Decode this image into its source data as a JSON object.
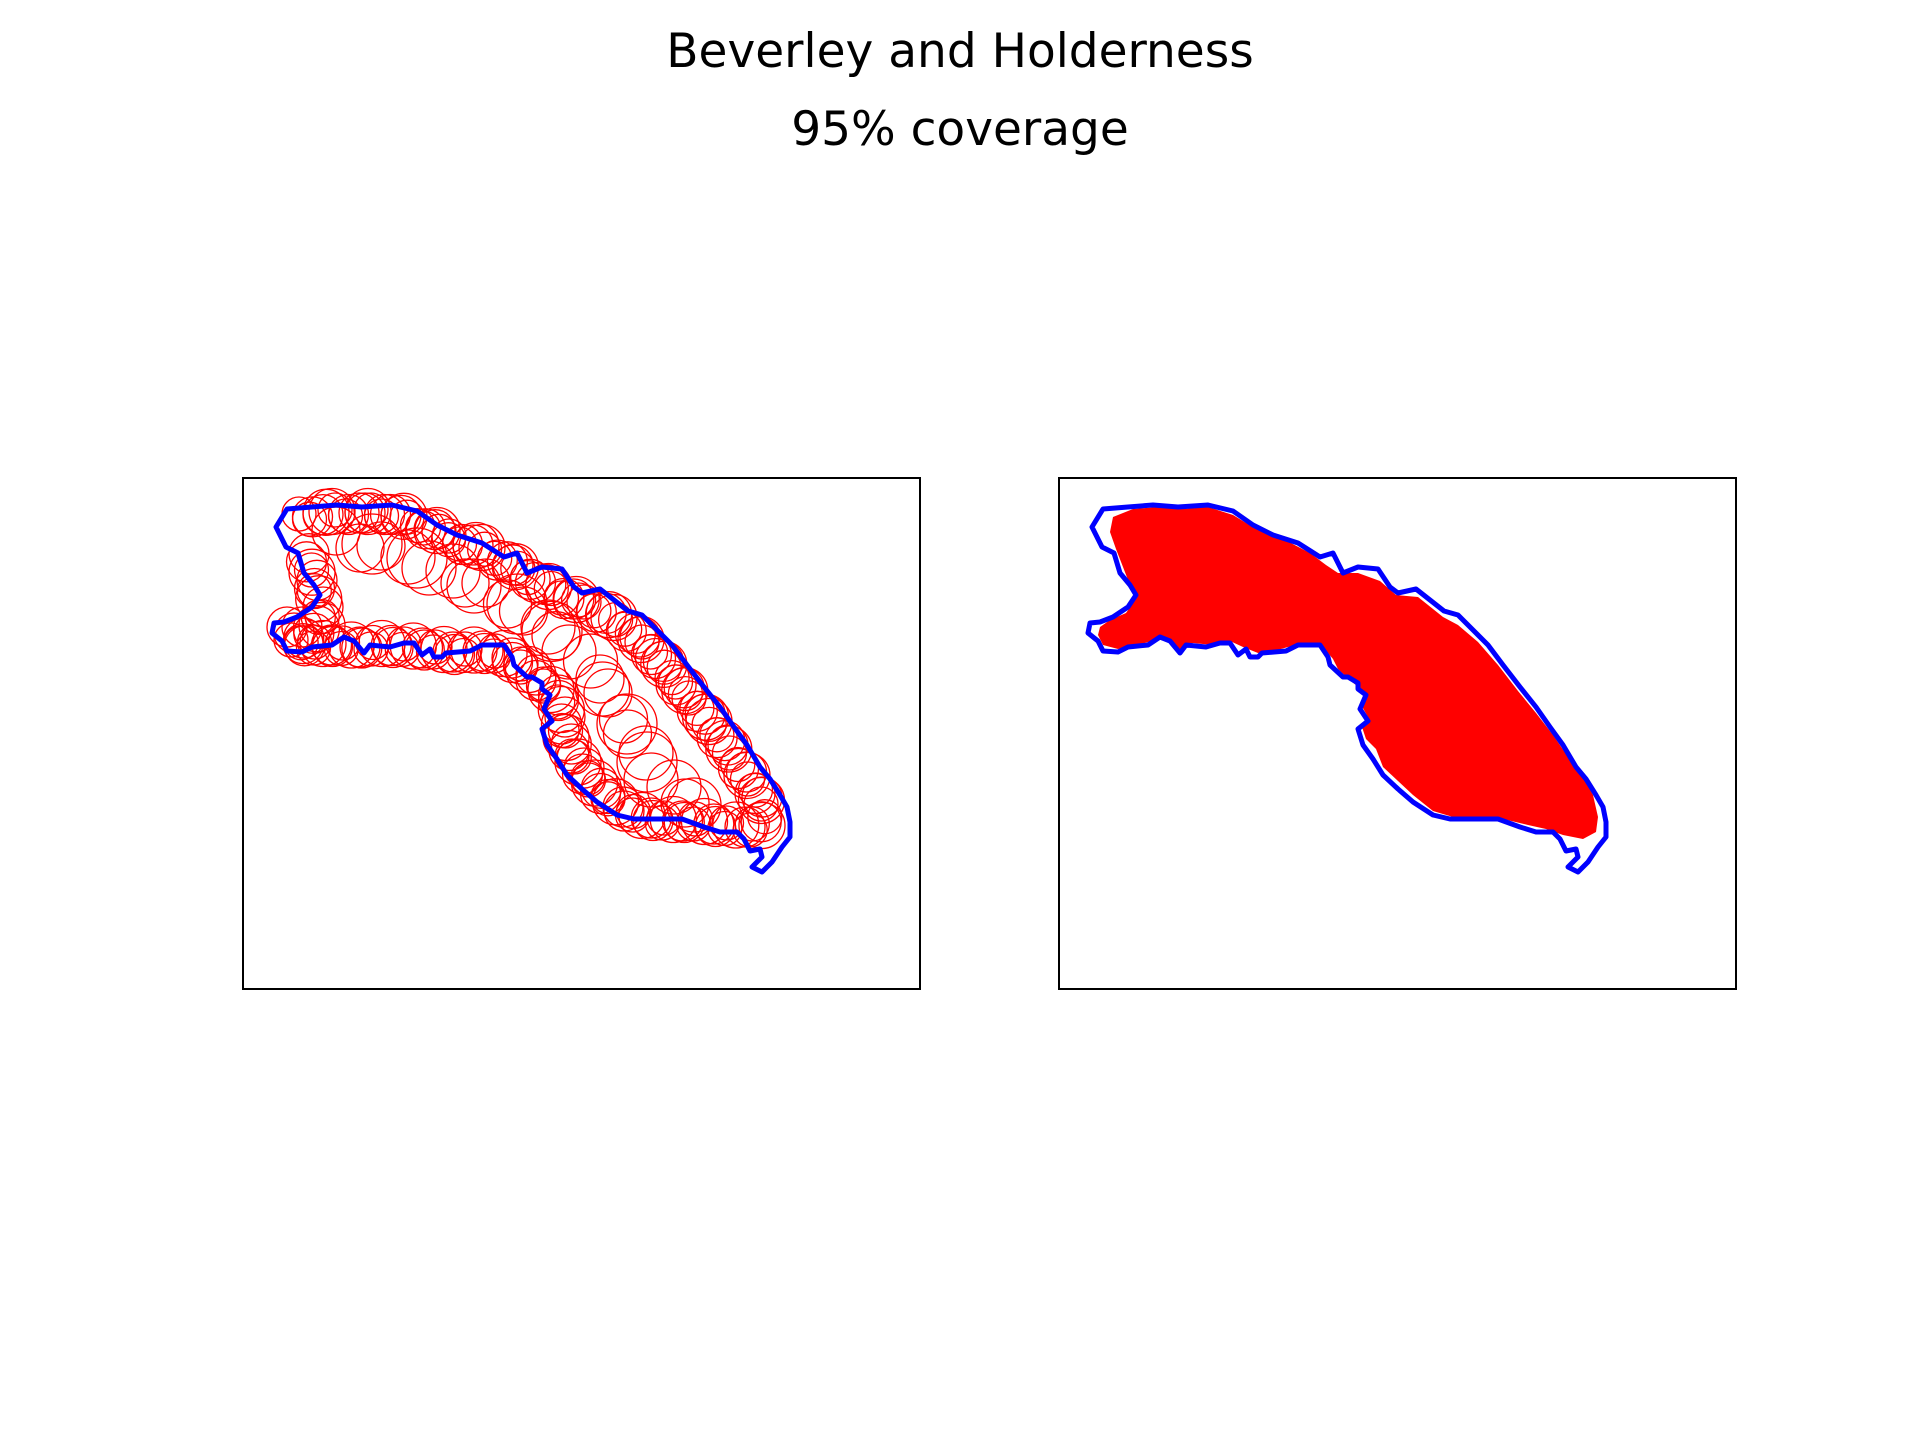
{
  "figure": {
    "title": "Beverley and Holderness",
    "subtitle": "95% coverage"
  },
  "colors": {
    "boundary": "#0000ff",
    "coverage": "#ff0000",
    "frame": "#000000"
  },
  "panels": [
    {
      "id": "circles",
      "description_style": "outlined-circles"
    },
    {
      "id": "filled",
      "description_style": "filled-union"
    }
  ]
}
